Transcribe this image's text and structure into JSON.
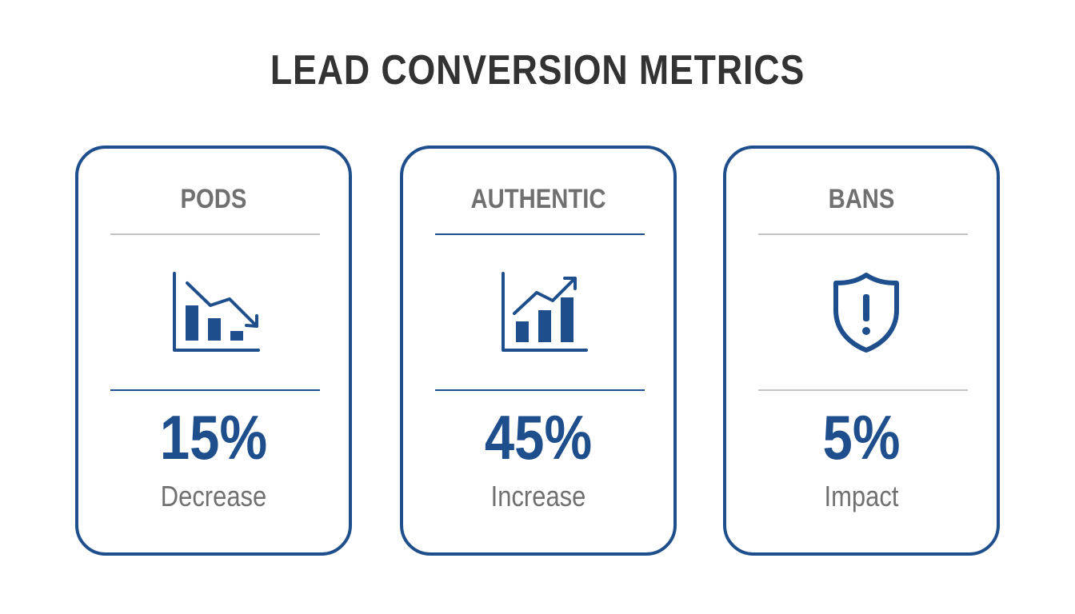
{
  "title": "LEAD CONVERSION METRICS",
  "colors": {
    "accent": "#1e4f8c",
    "text_dark": "#333333",
    "text_muted": "#707070",
    "rule_gray": "#c4c4c4"
  },
  "cards": [
    {
      "label": "PODS",
      "icon": "bar-chart-down-icon",
      "value": "15%",
      "caption": "Decrease"
    },
    {
      "label": "AUTHENTIC",
      "icon": "bar-chart-up-icon",
      "value": "45%",
      "caption": "Increase"
    },
    {
      "label": "BANS",
      "icon": "shield-alert-icon",
      "value": "5%",
      "caption": "Impact"
    }
  ]
}
